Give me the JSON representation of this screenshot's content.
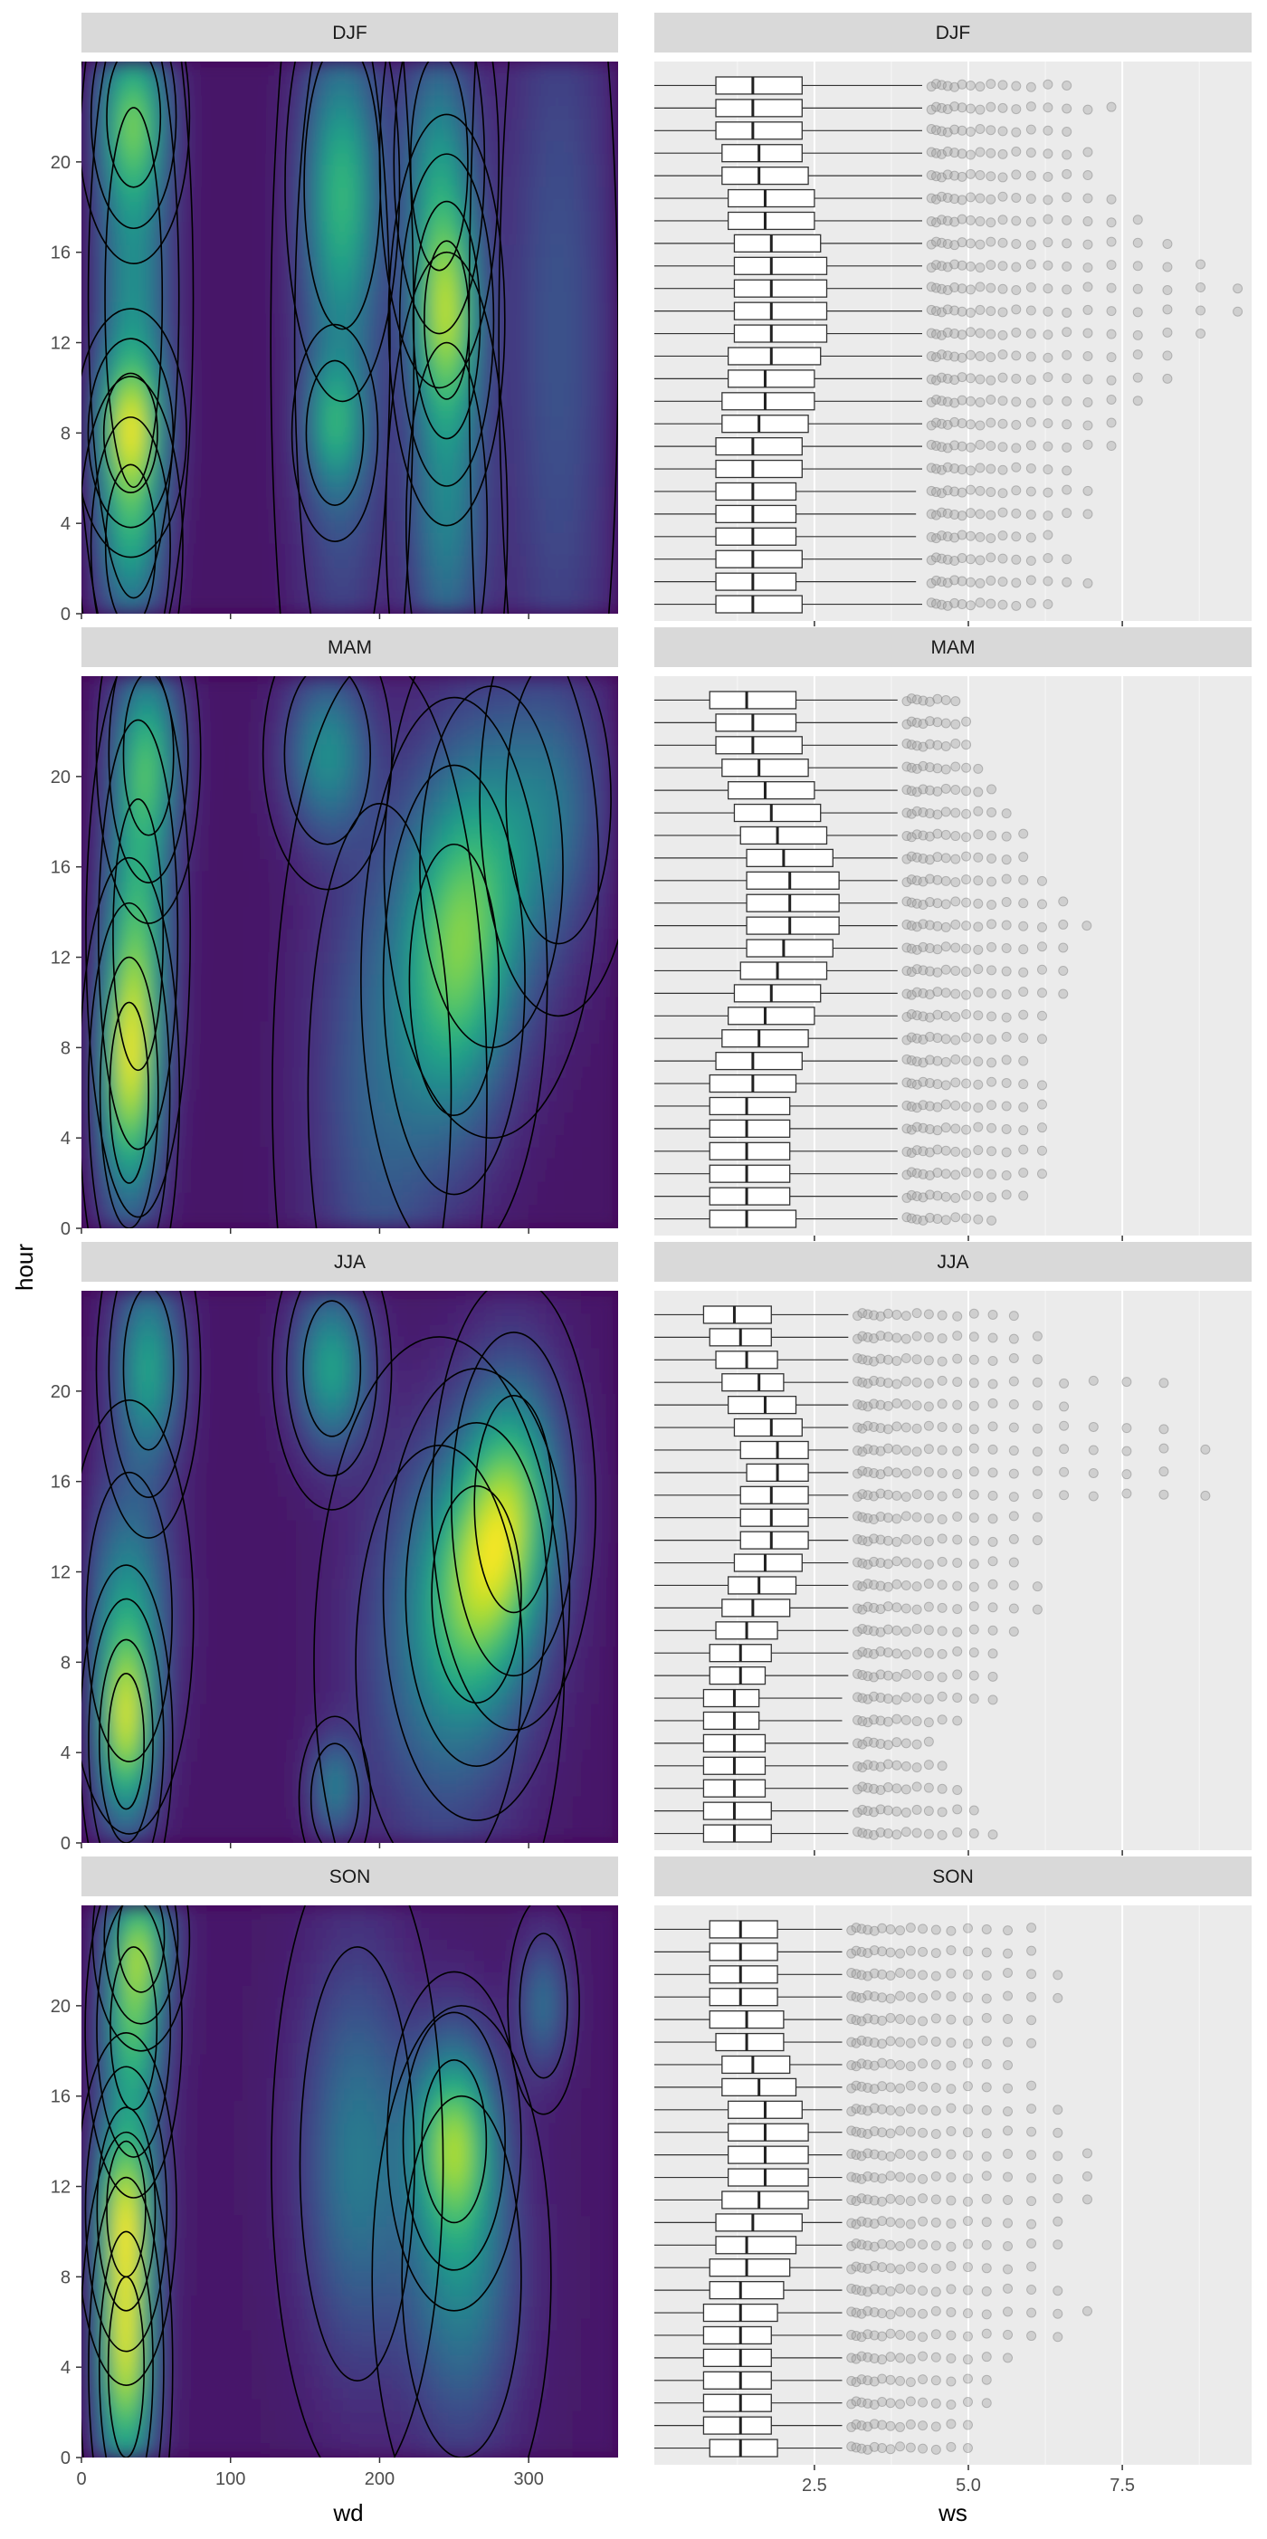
{
  "figure": {
    "y_title": "hour",
    "left_x_title": "wd",
    "right_x_title": "ws"
  },
  "chart_data": [
    {
      "type": "heatmap",
      "subtype": "2d-density-with-contours",
      "xlabel": "wd",
      "ylabel": "hour",
      "xlim": [
        0,
        360
      ],
      "ylim": [
        0,
        23
      ],
      "x_ticks": [
        0,
        100,
        200,
        300
      ],
      "y_ticks": [
        0,
        4,
        8,
        12,
        16,
        20
      ],
      "colormap": "viridis",
      "colors": {
        "low": "#440154",
        "mid": "#21918c",
        "high": "#fde725"
      },
      "panels": [
        {
          "season": "DJF",
          "peaks": [
            {
              "wd": 35,
              "hour": 14,
              "width_wd": 16,
              "width_hour": 7,
              "weight": 0.62
            },
            {
              "wd": 35,
              "hour": 22,
              "width_wd": 15,
              "width_hour": 2.6,
              "weight": 0.72
            },
            {
              "wd": 33,
              "hour": 8,
              "width_wd": 15,
              "width_hour": 2.2,
              "weight": 0.74
            },
            {
              "wd": 33,
              "hour": 3,
              "width_wd": 14,
              "width_hour": 3,
              "weight": 0.62
            },
            {
              "wd": 175,
              "hour": 19,
              "width_wd": 16,
              "width_hour": 4,
              "weight": 0.55
            },
            {
              "wd": 170,
              "hour": 8,
              "width_wd": 12,
              "width_hour": 2,
              "weight": 0.5
            },
            {
              "wd": 175,
              "hour": 12,
              "width_wd": 20,
              "width_hour": 10,
              "weight": 0.4
            },
            {
              "wd": 245,
              "hour": 13,
              "width_wd": 15,
              "width_hour": 3.5,
              "weight": 0.98
            },
            {
              "wd": 240,
              "hour": 20,
              "width_wd": 16,
              "width_hour": 4,
              "weight": 0.6
            },
            {
              "wd": 245,
              "hour": 4,
              "width_wd": 17,
              "width_hour": 5,
              "weight": 0.55
            },
            {
              "wd": 320,
              "hour": 12,
              "width_wd": 25,
              "width_hour": 14,
              "weight": 0.28
            }
          ]
        },
        {
          "season": "MAM",
          "peaks": [
            {
              "wd": 32,
              "hour": 6,
              "width_wd": 13,
              "width_hour": 4,
              "weight": 0.92
            },
            {
              "wd": 38,
              "hour": 13,
              "width_wd": 14,
              "width_hour": 5,
              "weight": 0.72
            },
            {
              "wd": 45,
              "hour": 21,
              "width_wd": 14,
              "width_hour": 3,
              "weight": 0.68
            },
            {
              "wd": 165,
              "hour": 21,
              "width_wd": 18,
              "width_hour": 2.5,
              "weight": 0.55
            },
            {
              "wd": 200,
              "hour": 6,
              "width_wd": 30,
              "width_hour": 8,
              "weight": 0.32
            },
            {
              "wd": 250,
              "hour": 11,
              "width_wd": 25,
              "width_hour": 5,
              "weight": 0.68
            },
            {
              "wd": 275,
              "hour": 16,
              "width_wd": 30,
              "width_hour": 5,
              "weight": 0.5
            },
            {
              "wd": 320,
              "hour": 19,
              "width_wd": 22,
              "width_hour": 4,
              "weight": 0.3
            }
          ]
        },
        {
          "season": "JJA",
          "peaks": [
            {
              "wd": 30,
              "hour": 4.5,
              "width_wd": 12,
              "width_hour": 3,
              "weight": 0.9
            },
            {
              "wd": 32,
              "hour": 10,
              "width_wd": 18,
              "width_hour": 4,
              "weight": 0.55
            },
            {
              "wd": 45,
              "hour": 21,
              "width_wd": 14,
              "width_hour": 3,
              "weight": 0.65
            },
            {
              "wd": 168,
              "hour": 21,
              "width_wd": 16,
              "width_hour": 2.5,
              "weight": 0.65
            },
            {
              "wd": 170,
              "hour": 2,
              "width_wd": 10,
              "width_hour": 1.5,
              "weight": 0.45
            },
            {
              "wd": 240,
              "hour": 8,
              "width_wd": 35,
              "width_hour": 6,
              "weight": 0.38
            },
            {
              "wd": 290,
              "hour": 15,
              "width_wd": 22,
              "width_hour": 4,
              "weight": 0.75
            },
            {
              "wd": 265,
              "hour": 11,
              "width_wd": 25,
              "width_hour": 4,
              "weight": 0.6
            }
          ]
        },
        {
          "season": "SON",
          "peaks": [
            {
              "wd": 30,
              "hour": 4,
              "width_wd": 12,
              "width_hour": 4,
              "weight": 1.0
            },
            {
              "wd": 30,
              "hour": 11,
              "width_wd": 13,
              "width_hour": 3,
              "weight": 0.82
            },
            {
              "wd": 35,
              "hour": 19,
              "width_wd": 13,
              "width_hour": 3,
              "weight": 0.72
            },
            {
              "wd": 40,
              "hour": 23,
              "width_wd": 13,
              "width_hour": 2,
              "weight": 0.62
            },
            {
              "wd": 185,
              "hour": 13,
              "width_wd": 24,
              "width_hour": 6,
              "weight": 0.4
            },
            {
              "wd": 250,
              "hour": 14,
              "width_wd": 18,
              "width_hour": 3,
              "weight": 0.72
            },
            {
              "wd": 255,
              "hour": 8,
              "width_wd": 25,
              "width_hour": 5,
              "weight": 0.45
            },
            {
              "wd": 310,
              "hour": 20,
              "width_wd": 10,
              "width_hour": 2,
              "weight": 0.35
            }
          ]
        }
      ]
    },
    {
      "type": "boxplot",
      "orientation": "horizontal",
      "xlabel": "ws",
      "ylabel": "hour",
      "xlim": [
        -0.1,
        9.6
      ],
      "x_ticks": [
        2.5,
        5.0,
        7.5
      ],
      "x_tick_labels": [
        "2.5",
        "5.0",
        "7.5"
      ],
      "ylim": [
        -0.5,
        23.5
      ],
      "hours": [
        0,
        23
      ],
      "panels": [
        {
          "season": "DJF",
          "median": [
            1.5,
            1.5,
            1.5,
            1.5,
            1.5,
            1.5,
            1.5,
            1.5,
            1.6,
            1.7,
            1.7,
            1.8,
            1.8,
            1.8,
            1.8,
            1.8,
            1.8,
            1.7,
            1.7,
            1.6,
            1.6,
            1.5,
            1.5,
            1.5
          ],
          "q1": [
            0.9,
            0.9,
            0.9,
            0.9,
            0.9,
            0.9,
            0.9,
            0.9,
            1.0,
            1.0,
            1.1,
            1.1,
            1.2,
            1.2,
            1.2,
            1.2,
            1.2,
            1.1,
            1.1,
            1.0,
            1.0,
            0.9,
            0.9,
            0.9
          ],
          "q3": [
            2.3,
            2.2,
            2.3,
            2.2,
            2.2,
            2.2,
            2.3,
            2.3,
            2.4,
            2.5,
            2.5,
            2.6,
            2.7,
            2.7,
            2.7,
            2.7,
            2.6,
            2.5,
            2.5,
            2.4,
            2.3,
            2.3,
            2.3,
            2.3
          ],
          "outlier_start": 4.4,
          "outlier_end": [
            6.5,
            7.1,
            6.8,
            6.3,
            7.0,
            7.2,
            6.9,
            7.4,
            7.7,
            8.0,
            8.3,
            8.5,
            8.8,
            9.4,
            9.6,
            8.9,
            8.4,
            7.8,
            7.5,
            7.3,
            7.1,
            6.9,
            7.6,
            6.8
          ]
        },
        {
          "season": "MAM",
          "median": [
            1.4,
            1.4,
            1.4,
            1.4,
            1.4,
            1.4,
            1.5,
            1.5,
            1.6,
            1.7,
            1.8,
            1.9,
            2.0,
            2.1,
            2.1,
            2.1,
            2.0,
            1.9,
            1.8,
            1.7,
            1.6,
            1.5,
            1.5,
            1.4
          ],
          "q1": [
            0.8,
            0.8,
            0.8,
            0.8,
            0.8,
            0.8,
            0.8,
            0.9,
            1.0,
            1.1,
            1.2,
            1.3,
            1.4,
            1.4,
            1.4,
            1.4,
            1.4,
            1.3,
            1.2,
            1.1,
            1.0,
            0.9,
            0.9,
            0.8
          ],
          "q3": [
            2.2,
            2.1,
            2.1,
            2.1,
            2.1,
            2.1,
            2.2,
            2.3,
            2.4,
            2.5,
            2.6,
            2.7,
            2.8,
            2.9,
            2.9,
            2.9,
            2.8,
            2.7,
            2.6,
            2.5,
            2.4,
            2.3,
            2.2,
            2.2
          ],
          "outlier_start": 4.0,
          "outlier_end": [
            5.4,
            5.9,
            6.2,
            6.5,
            6.3,
            6.5,
            6.2,
            6.0,
            6.4,
            6.5,
            6.6,
            6.7,
            6.9,
            7.0,
            6.8,
            6.5,
            6.1,
            5.9,
            5.7,
            5.4,
            5.2,
            5.1,
            5.0,
            4.9
          ]
        },
        {
          "season": "JJA",
          "median": [
            1.2,
            1.2,
            1.2,
            1.2,
            1.2,
            1.2,
            1.2,
            1.3,
            1.3,
            1.4,
            1.5,
            1.6,
            1.7,
            1.8,
            1.8,
            1.8,
            1.9,
            1.9,
            1.8,
            1.7,
            1.6,
            1.4,
            1.3,
            1.2
          ],
          "q1": [
            0.7,
            0.7,
            0.7,
            0.7,
            0.7,
            0.7,
            0.7,
            0.8,
            0.8,
            0.9,
            1.0,
            1.1,
            1.2,
            1.3,
            1.3,
            1.3,
            1.4,
            1.3,
            1.2,
            1.1,
            1.0,
            0.9,
            0.8,
            0.7
          ],
          "q3": [
            1.8,
            1.8,
            1.7,
            1.7,
            1.7,
            1.6,
            1.6,
            1.7,
            1.8,
            1.9,
            2.1,
            2.2,
            2.3,
            2.4,
            2.4,
            2.4,
            2.4,
            2.4,
            2.3,
            2.2,
            2.0,
            1.9,
            1.8,
            1.8
          ],
          "outlier_start": 3.2,
          "outlier_end": [
            5.6,
            5.1,
            5.0,
            4.8,
            4.5,
            5.0,
            5.4,
            5.6,
            5.7,
            6.0,
            6.2,
            6.2,
            6.1,
            6.3,
            6.5,
            9.4,
            8.7,
            9.0,
            8.5,
            7.0,
            8.4,
            6.5,
            6.2,
            5.8
          ]
        },
        {
          "season": "SON",
          "median": [
            1.3,
            1.3,
            1.3,
            1.3,
            1.3,
            1.3,
            1.3,
            1.3,
            1.4,
            1.4,
            1.5,
            1.6,
            1.7,
            1.7,
            1.7,
            1.7,
            1.6,
            1.5,
            1.4,
            1.4,
            1.3,
            1.3,
            1.3,
            1.3
          ],
          "q1": [
            0.8,
            0.7,
            0.7,
            0.7,
            0.7,
            0.7,
            0.7,
            0.8,
            0.8,
            0.9,
            0.9,
            1.0,
            1.1,
            1.1,
            1.1,
            1.1,
            1.0,
            1.0,
            0.9,
            0.8,
            0.8,
            0.8,
            0.8,
            0.8
          ],
          "q3": [
            1.9,
            1.8,
            1.8,
            1.8,
            1.8,
            1.8,
            1.9,
            2.0,
            2.1,
            2.2,
            2.3,
            2.4,
            2.4,
            2.4,
            2.4,
            2.3,
            2.2,
            2.1,
            2.0,
            2.0,
            1.9,
            1.9,
            1.9,
            1.9
          ],
          "outlier_start": 3.1,
          "outlier_end": [
            5.1,
            5.0,
            5.3,
            5.6,
            6.0,
            6.6,
            7.0,
            6.5,
            6.4,
            6.5,
            6.8,
            7.0,
            7.3,
            7.2,
            6.8,
            6.5,
            6.2,
            6.0,
            6.1,
            6.3,
            6.5,
            6.8,
            6.4,
            6.3
          ]
        }
      ]
    }
  ]
}
